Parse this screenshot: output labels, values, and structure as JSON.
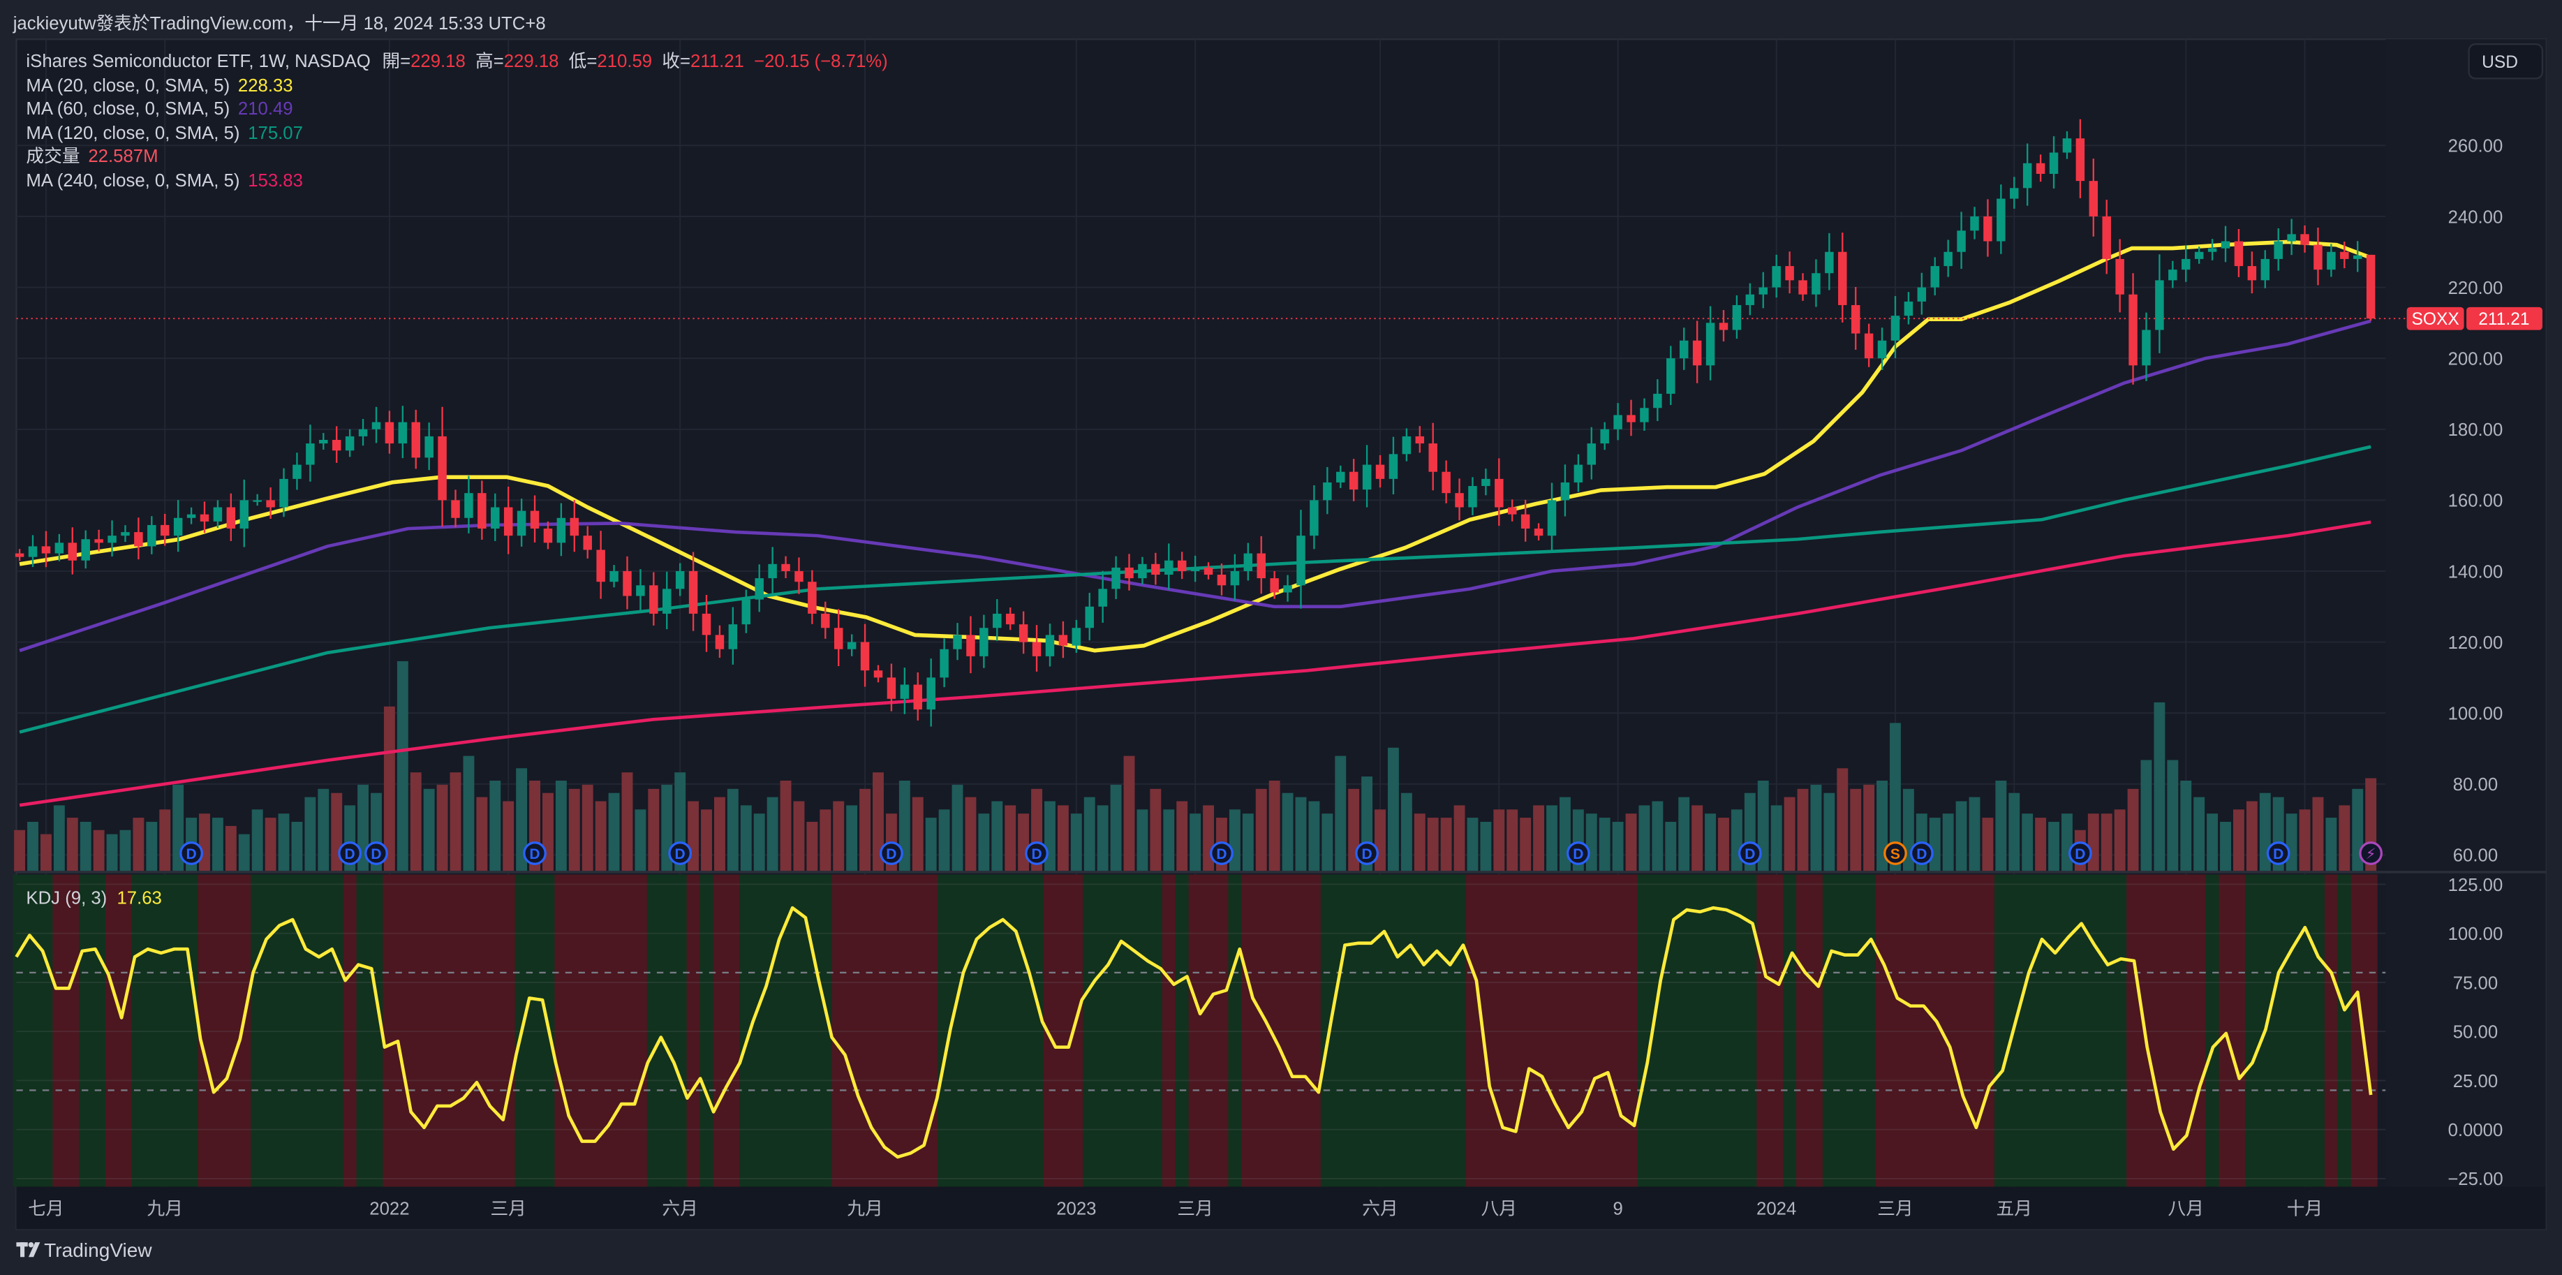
{
  "header": {
    "publisher": "jackieyutw發表於TradingView.com，十一月 18, 2024 15:33 UTC+8"
  },
  "legend": {
    "symbol": "iShares Semiconductor ETF, 1W, NASDAQ",
    "open_label": "開=",
    "open": "229.18",
    "high_label": "高=",
    "high": "229.18",
    "low_label": "低=",
    "low": "210.59",
    "close_label": "收=",
    "close": "211.21",
    "change": "−20.15 (−8.71%)"
  },
  "indicators": [
    {
      "label": "MA (20, close, 0, SMA, 5)",
      "value": "228.33",
      "color": "#ffeb3b"
    },
    {
      "label": "MA (60, close, 0, SMA, 5)",
      "value": "210.49",
      "color": "#673ab7"
    },
    {
      "label": "MA (120, close, 0, SMA, 5)",
      "value": "175.07",
      "color": "#089981"
    },
    {
      "label": "成交量",
      "value": "22.587M",
      "color": "#f7525f"
    },
    {
      "label": "MA (240, close, 0, SMA, 5)",
      "value": "153.83",
      "color": "#e91e63"
    }
  ],
  "kdj": {
    "label": "KDJ (9, 3)",
    "value": "17.63"
  },
  "price_axis": {
    "currency": "USD",
    "symbol_tag": "SOXX",
    "last_price": "211.21",
    "ticks": [
      {
        "label": "260.00",
        "value": 260
      },
      {
        "label": "240.00",
        "value": 240
      },
      {
        "label": "220.00",
        "value": 220
      },
      {
        "label": "200.00",
        "value": 200
      },
      {
        "label": "180.00",
        "value": 180
      },
      {
        "label": "160.00",
        "value": 160
      },
      {
        "label": "140.00",
        "value": 140
      },
      {
        "label": "120.00",
        "value": 120
      },
      {
        "label": "100.00",
        "value": 100
      },
      {
        "label": "80.00",
        "value": 80
      },
      {
        "label": "60.00",
        "value": 60
      }
    ]
  },
  "kdj_axis": {
    "ticks": [
      {
        "label": "125.00",
        "value": 125
      },
      {
        "label": "100.00",
        "value": 100
      },
      {
        "label": "75.00",
        "value": 75
      },
      {
        "label": "50.00",
        "value": 50
      },
      {
        "label": "25.00",
        "value": 25
      },
      {
        "label": "0.0000",
        "value": 0
      },
      {
        "label": "−25.00",
        "value": -25
      }
    ]
  },
  "time_axis": {
    "labels": [
      {
        "text": "七月",
        "bar": 2
      },
      {
        "text": "九月",
        "bar": 11
      },
      {
        "text": "2022",
        "bar": 28
      },
      {
        "text": "三月",
        "bar": 37
      },
      {
        "text": "六月",
        "bar": 50
      },
      {
        "text": "九月",
        "bar": 64
      },
      {
        "text": "2023",
        "bar": 80
      },
      {
        "text": "三月",
        "bar": 89
      },
      {
        "text": "六月",
        "bar": 103
      },
      {
        "text": "八月",
        "bar": 112
      },
      {
        "text": "9",
        "bar": 121
      },
      {
        "text": "2024",
        "bar": 133
      },
      {
        "text": "三月",
        "bar": 142
      },
      {
        "text": "五月",
        "bar": 151
      },
      {
        "text": "八月",
        "bar": 164
      },
      {
        "text": "十月",
        "bar": 173
      }
    ]
  },
  "footer": {
    "brand": "TradingView"
  },
  "colors": {
    "up": "#089981",
    "down": "#f23645",
    "vol_up": "#1f5c5a",
    "vol_down": "#7a3138",
    "band_up": "#11321e",
    "band_down": "#4c1720",
    "kdj_line": "#ffeb3b"
  },
  "chart_data": {
    "type": "candlestick",
    "title": "iShares Semiconductor ETF, 1W, NASDAQ",
    "first_open": 145,
    "close": [
      144,
      147,
      145,
      148,
      143,
      149,
      148,
      150,
      151,
      147,
      153,
      150,
      155,
      156,
      154,
      158,
      152,
      160,
      160,
      158,
      166,
      170,
      176,
      177,
      174,
      178,
      180,
      182,
      176,
      182,
      172,
      178,
      160,
      155,
      162,
      152,
      158,
      150,
      157,
      152,
      148,
      155,
      150,
      146,
      137,
      140,
      133,
      136,
      128,
      135,
      140,
      128,
      122,
      118,
      125,
      132,
      138,
      142,
      140,
      137,
      128,
      124,
      118,
      120,
      112,
      110,
      104,
      108,
      101,
      110,
      118,
      122,
      116,
      124,
      128,
      125,
      120,
      116,
      122,
      119,
      124,
      130,
      135,
      141,
      138,
      142,
      139,
      143,
      140,
      141,
      139,
      136,
      140,
      145,
      138,
      134,
      136,
      150,
      160,
      165,
      168,
      163,
      170,
      166,
      173,
      178,
      176,
      168,
      162,
      158,
      164,
      166,
      158,
      156,
      152,
      150,
      160,
      165,
      170,
      176,
      180,
      184,
      182,
      186,
      190,
      200,
      205,
      198,
      210,
      208,
      215,
      218,
      220,
      226,
      222,
      218,
      224,
      230,
      215,
      207,
      200,
      205,
      212,
      216,
      220,
      226,
      230,
      236,
      240,
      233,
      245,
      248,
      255,
      252,
      258,
      262,
      250,
      240,
      228,
      218,
      198,
      208,
      222,
      225,
      228,
      230,
      231,
      233,
      226,
      222,
      228,
      233,
      235,
      232,
      225,
      230,
      228,
      229,
      211.21
    ],
    "last_bar": {
      "open": 229.18,
      "high": 229.18,
      "low": 210.59,
      "close": 211.21
    },
    "volume_millions": [
      10,
      12,
      9,
      16,
      13,
      12,
      10,
      9,
      10,
      13,
      12,
      15,
      21,
      13,
      14,
      13,
      11,
      9,
      15,
      13,
      14,
      12,
      18,
      20,
      19,
      16,
      21,
      19,
      40,
      51,
      24,
      20,
      21,
      24,
      28,
      18,
      22,
      17,
      25,
      22,
      19,
      22,
      20,
      21,
      17,
      19,
      24,
      15,
      20,
      21,
      24,
      17,
      15,
      18,
      20,
      16,
      14,
      18,
      22,
      17,
      12,
      15,
      17,
      16,
      20,
      24,
      14,
      22,
      18,
      13,
      15,
      21,
      18,
      14,
      17,
      16,
      14,
      20,
      17,
      16,
      14,
      18,
      16,
      21,
      28,
      15,
      20,
      15,
      17,
      14,
      16,
      13,
      15,
      14,
      20,
      22,
      19,
      18,
      17,
      14,
      28,
      20,
      23,
      15,
      30,
      19,
      14,
      13,
      13,
      16,
      13,
      12,
      15,
      15,
      13,
      16,
      16,
      18,
      15,
      14,
      13,
      12,
      14,
      16,
      17,
      12,
      18,
      16,
      14,
      13,
      15,
      19,
      22,
      16,
      18,
      20,
      21,
      19,
      25,
      20,
      21,
      22,
      36,
      20,
      14,
      13,
      14,
      17,
      18,
      13,
      22,
      19,
      14,
      13,
      12,
      14,
      10,
      14,
      14,
      15,
      20,
      27,
      41,
      27,
      22,
      18,
      14,
      12,
      15,
      17,
      19,
      18,
      14,
      15,
      18,
      13,
      16,
      20,
      22.587
    ],
    "moving_averages": [
      {
        "name": "MA20",
        "color": "#ffeb3b",
        "points": [
          [
            0,
            142
          ],
          [
            5.9,
            145.5
          ],
          [
            12.1,
            149
          ],
          [
            17.1,
            154.5
          ],
          [
            23.3,
            160.5
          ],
          [
            28.2,
            165
          ],
          [
            31.9,
            166.5
          ],
          [
            36.9,
            166.5
          ],
          [
            40,
            164
          ],
          [
            43,
            158
          ],
          [
            48,
            149
          ],
          [
            52.9,
            140
          ],
          [
            56.7,
            133
          ],
          [
            60.4,
            129.6
          ],
          [
            64.1,
            127
          ],
          [
            67.8,
            122
          ],
          [
            72.7,
            121.3
          ],
          [
            77.7,
            120.4
          ],
          [
            81.4,
            117.6
          ],
          [
            85.1,
            119
          ],
          [
            90.1,
            125.9
          ],
          [
            95,
            133.7
          ],
          [
            100,
            140.6
          ],
          [
            104.9,
            146.6
          ],
          [
            109.8,
            154.5
          ],
          [
            114.8,
            159
          ],
          [
            119.7,
            162.8
          ],
          [
            124.7,
            163.7
          ],
          [
            128.4,
            163.7
          ],
          [
            132.1,
            167.4
          ],
          [
            135.8,
            176.6
          ],
          [
            139.5,
            190.4
          ],
          [
            142,
            203.3
          ],
          [
            144.5,
            211
          ],
          [
            147,
            211
          ],
          [
            150.7,
            215.8
          ],
          [
            154.4,
            221.8
          ],
          [
            158.1,
            228.2
          ],
          [
            159.9,
            231
          ],
          [
            163,
            231
          ],
          [
            166.8,
            232
          ],
          [
            171.7,
            232.8
          ],
          [
            175.4,
            232
          ],
          [
            178,
            228.33
          ]
        ]
      },
      {
        "name": "MA60",
        "color": "#673ab7",
        "points": [
          [
            0,
            117.6
          ],
          [
            10.9,
            131
          ],
          [
            23.3,
            147
          ],
          [
            29.4,
            152
          ],
          [
            35.6,
            153
          ],
          [
            45.5,
            153.5
          ],
          [
            54.2,
            151
          ],
          [
            60.4,
            150
          ],
          [
            72.7,
            144
          ],
          [
            85.1,
            136
          ],
          [
            95,
            130
          ],
          [
            100,
            130
          ],
          [
            109.8,
            135
          ],
          [
            116,
            140
          ],
          [
            122.2,
            142
          ],
          [
            128.4,
            147
          ],
          [
            134.6,
            158
          ],
          [
            140.8,
            167
          ],
          [
            147,
            174
          ],
          [
            153.1,
            183.5
          ],
          [
            159.3,
            193
          ],
          [
            165.5,
            200
          ],
          [
            171.7,
            204
          ],
          [
            178,
            210.49
          ]
        ]
      },
      {
        "name": "MA120",
        "color": "#089981",
        "points": [
          [
            0,
            94.6
          ],
          [
            23.3,
            117
          ],
          [
            35.6,
            124
          ],
          [
            48,
            129
          ],
          [
            60.4,
            135
          ],
          [
            72.7,
            137.5
          ],
          [
            85.1,
            140
          ],
          [
            97.5,
            142.5
          ],
          [
            109.8,
            144.5
          ],
          [
            122.2,
            146.6
          ],
          [
            134.6,
            149
          ],
          [
            140.8,
            151
          ],
          [
            153.1,
            154.5
          ],
          [
            159.3,
            160
          ],
          [
            171.7,
            169.7
          ],
          [
            178,
            175.07
          ]
        ]
      },
      {
        "name": "MA240",
        "color": "#e91e63",
        "points": [
          [
            0,
            74
          ],
          [
            23.3,
            86.7
          ],
          [
            35.6,
            92.7
          ],
          [
            48,
            98.2
          ],
          [
            60.4,
            101.5
          ],
          [
            72.7,
            104.7
          ],
          [
            85.1,
            108.4
          ],
          [
            97.5,
            112
          ],
          [
            109.8,
            116.7
          ],
          [
            122.2,
            121
          ],
          [
            134.6,
            128
          ],
          [
            147,
            136
          ],
          [
            159.3,
            144.3
          ],
          [
            171.7,
            150
          ],
          [
            178,
            153.83
          ]
        ]
      }
    ],
    "events": [
      {
        "bar": 13,
        "label": "D",
        "kind": "dividend"
      },
      {
        "bar": 25,
        "label": "D",
        "kind": "dividend"
      },
      {
        "bar": 27,
        "label": "D",
        "kind": "dividend"
      },
      {
        "bar": 39,
        "label": "D",
        "kind": "dividend"
      },
      {
        "bar": 50,
        "label": "D",
        "kind": "dividend"
      },
      {
        "bar": 66,
        "label": "D",
        "kind": "dividend"
      },
      {
        "bar": 77,
        "label": "D",
        "kind": "dividend"
      },
      {
        "bar": 91,
        "label": "D",
        "kind": "dividend"
      },
      {
        "bar": 102,
        "label": "D",
        "kind": "dividend"
      },
      {
        "bar": 118,
        "label": "D",
        "kind": "dividend"
      },
      {
        "bar": 131,
        "label": "D",
        "kind": "dividend"
      },
      {
        "bar": 142,
        "label": "S",
        "kind": "split"
      },
      {
        "bar": 144,
        "label": "D",
        "kind": "dividend"
      },
      {
        "bar": 156,
        "label": "D",
        "kind": "dividend"
      },
      {
        "bar": 171,
        "label": "D",
        "kind": "dividend"
      },
      {
        "bar": 178,
        "label": "⚡",
        "kind": "earnings"
      }
    ],
    "kdj": {
      "levels": [
        80,
        20
      ],
      "ylim": [
        -30,
        130
      ],
      "j": [
        88,
        99,
        91,
        72,
        72,
        91,
        92,
        79,
        57,
        88,
        92,
        90,
        92,
        92,
        46,
        19,
        26,
        46,
        80,
        97,
        104,
        107,
        92,
        88,
        92,
        76,
        84,
        82,
        42,
        45,
        9,
        1,
        12,
        12,
        16,
        24,
        12,
        5,
        38,
        67,
        66,
        34,
        7,
        -6,
        -6,
        2,
        13,
        13,
        34,
        47,
        34,
        16,
        26,
        9,
        22,
        34,
        55,
        73,
        97,
        113,
        108,
        76,
        47,
        38,
        17,
        1,
        -9,
        -14,
        -12,
        -8,
        16,
        51,
        80,
        97,
        103,
        107,
        101,
        80,
        55,
        42,
        42,
        66,
        76,
        84,
        96,
        91,
        86,
        82,
        74,
        78,
        59,
        69,
        71,
        92,
        67,
        55,
        42,
        27,
        27,
        19,
        57,
        94,
        95,
        95,
        101,
        88,
        94,
        84,
        91,
        84,
        94,
        76,
        22,
        1,
        -1,
        31,
        27,
        13,
        1,
        9,
        26,
        29,
        7,
        2,
        34,
        76,
        107,
        112,
        111,
        113,
        112,
        109,
        105,
        78,
        74,
        90,
        80,
        73,
        91,
        89,
        89,
        97,
        84,
        67,
        63,
        63,
        55,
        42,
        17,
        1,
        22,
        30,
        55,
        80,
        97,
        90,
        98,
        105,
        94,
        84,
        87,
        86,
        42,
        9,
        -10,
        -3,
        22,
        42,
        49,
        26,
        34,
        51,
        80,
        92,
        103,
        88,
        80,
        61,
        70,
        17.63
      ],
      "down_bands": [
        [
          3,
          4
        ],
        [
          7,
          8
        ],
        [
          14,
          17
        ],
        [
          25,
          25
        ],
        [
          28,
          37
        ],
        [
          41,
          47
        ],
        [
          51,
          51
        ],
        [
          53,
          54
        ],
        [
          62,
          69
        ],
        [
          78,
          80
        ],
        [
          87,
          87
        ],
        [
          89,
          91
        ],
        [
          93,
          98
        ],
        [
          110,
          122
        ],
        [
          132,
          133
        ],
        [
          135,
          136
        ],
        [
          141,
          149
        ],
        [
          160,
          165
        ],
        [
          167,
          168
        ],
        [
          175,
          175
        ],
        [
          177,
          178
        ]
      ]
    },
    "ylim": [
      55,
      270
    ]
  }
}
